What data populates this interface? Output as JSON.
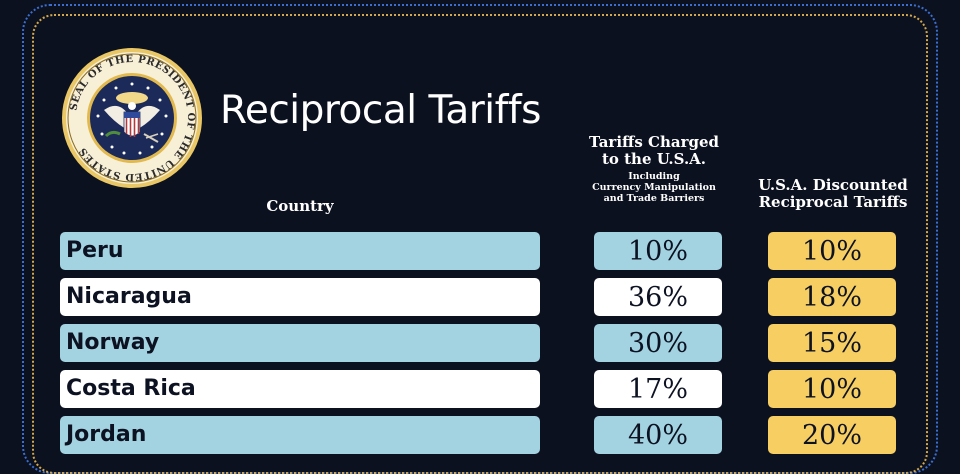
{
  "seal": {
    "text": "SEAL OF THE PRESIDENT OF THE UNITED STATES"
  },
  "title": "Reciprocal Tariffs",
  "headers": {
    "country": "Country",
    "charged_line1": "Tariffs Charged",
    "charged_line2": "to the U.S.A.",
    "charged_sub1": "Including",
    "charged_sub2": "Currency Manipulation",
    "charged_sub3": "and Trade Barriers",
    "reciprocal_line1": "U.S.A. Discounted",
    "reciprocal_line2": "Reciprocal Tariffs"
  },
  "rows": [
    {
      "country": "Peru",
      "charged": "10%",
      "reciprocal": "10%"
    },
    {
      "country": "Nicaragua",
      "charged": "36%",
      "reciprocal": "18%"
    },
    {
      "country": "Norway",
      "charged": "30%",
      "reciprocal": "15%"
    },
    {
      "country": "Costa Rica",
      "charged": "17%",
      "reciprocal": "10%"
    },
    {
      "country": "Jordan",
      "charged": "40%",
      "reciprocal": "20%"
    }
  ],
  "colors": {
    "background": "#0c1120",
    "row_blue": "#a3d3e1",
    "row_white": "#ffffff",
    "reciprocal_yellow": "#f6ce62",
    "frame_blue": "#3a6fd1",
    "frame_gold": "#d4a84a"
  },
  "chart_data": {
    "type": "table",
    "title": "Reciprocal Tariffs",
    "columns": [
      "Country",
      "Tariffs Charged to the U.S.A. Including Currency Manipulation and Trade Barriers",
      "U.S.A. Discounted Reciprocal Tariffs"
    ],
    "categories": [
      "Peru",
      "Nicaragua",
      "Norway",
      "Costa Rica",
      "Jordan"
    ],
    "series": [
      {
        "name": "Tariffs Charged to the U.S.A.",
        "values": [
          10,
          36,
          30,
          17,
          40
        ]
      },
      {
        "name": "U.S.A. Discounted Reciprocal Tariffs",
        "values": [
          10,
          18,
          15,
          10,
          20
        ]
      }
    ]
  }
}
